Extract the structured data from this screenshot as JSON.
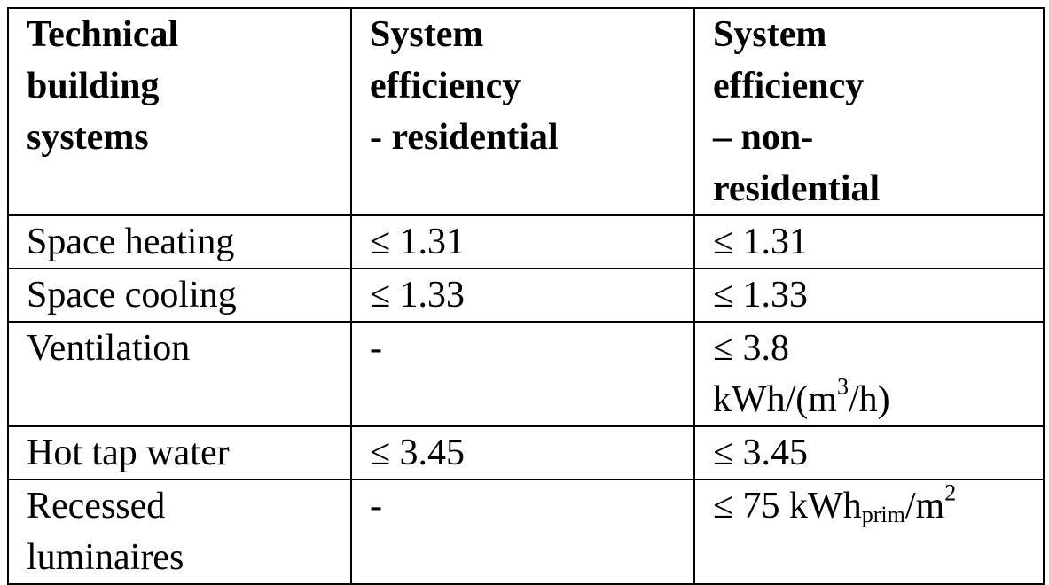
{
  "table": {
    "header": [
      [
        "Technical",
        "building",
        "systems"
      ],
      [
        "System",
        "efficiency",
        "- residential"
      ],
      [
        "System",
        "efficiency",
        "– non-",
        "residential"
      ]
    ],
    "rows": [
      [
        "Space heating",
        "≤ 1.31",
        "≤ 1.31"
      ],
      [
        "Space cooling",
        "≤ 1.33",
        "≤ 1.33"
      ],
      [
        "Ventilation",
        "-",
        [
          "≤ 3.8",
          [
            {
              "text": "kWh/(m"
            },
            {
              "text": "3",
              "position": "sup"
            },
            {
              "text": "/h)"
            }
          ]
        ]
      ],
      [
        "Hot tap water",
        "≤ 3.45",
        "≤ 3.45"
      ],
      [
        [
          "Recessed",
          "luminaires"
        ],
        "-",
        [
          [
            {
              "text": "≤ 75 kWh"
            },
            {
              "text": "prim",
              "position": "sub"
            },
            {
              "text": "/m"
            },
            {
              "text": "2",
              "position": "sup"
            }
          ]
        ]
      ]
    ]
  }
}
